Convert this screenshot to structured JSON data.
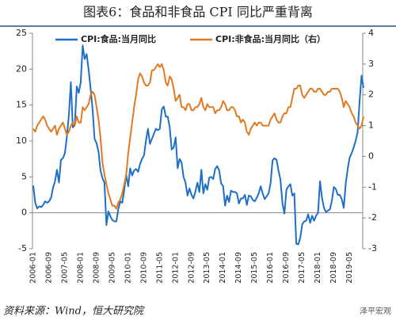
{
  "chart_data": {
    "type": "line",
    "title": "图表6：食品和非食品 CPI 同比严重背离",
    "source": "资料来源：Wind，恒大研究院",
    "watermark": "泽平宏观",
    "categories": [
      "2006-01",
      null,
      null,
      null,
      null,
      null,
      null,
      null,
      "2006-09",
      null,
      null,
      null,
      null,
      null,
      null,
      null,
      "2007-05",
      null,
      null,
      null,
      null,
      null,
      null,
      null,
      "2008-01",
      null,
      null,
      null,
      null,
      null,
      null,
      null,
      "2008-09",
      null,
      null,
      null,
      null,
      null,
      null,
      null,
      "2009-05",
      null,
      null,
      null,
      null,
      null,
      null,
      null,
      "2010-01",
      null,
      null,
      null,
      null,
      null,
      null,
      null,
      "2010-09",
      null,
      null,
      null,
      null,
      null,
      null,
      null,
      "2011-05",
      null,
      null,
      null,
      null,
      null,
      null,
      null,
      "2012-01",
      null,
      null,
      null,
      null,
      null,
      null,
      null,
      "2012-09",
      null,
      null,
      null,
      null,
      null,
      null,
      null,
      "2013-05",
      null,
      null,
      null,
      null,
      null,
      null,
      null,
      "2014-01",
      null,
      null,
      null,
      null,
      null,
      null,
      null,
      "2014-09",
      null,
      null,
      null,
      null,
      null,
      null,
      null,
      "2015-05",
      null,
      null,
      null,
      null,
      null,
      null,
      null,
      "2016-01",
      null,
      null,
      null,
      null,
      null,
      null,
      null,
      "2016-09",
      null,
      null,
      null,
      null,
      null,
      null,
      null,
      "2017-05",
      null,
      null,
      null,
      null,
      null,
      null,
      null,
      "2018-01",
      null,
      null,
      null,
      null,
      null,
      null,
      null,
      "2018-09",
      null,
      null,
      null,
      null,
      null,
      null,
      null,
      "2019-05",
      null,
      null,
      null,
      null,
      null,
      null,
      null
    ],
    "series": [
      {
        "name": "CPI:食品:当月同比",
        "color": "#1f6fc5",
        "values": [
          3.8,
          1.4,
          0.6,
          0.9,
          0.8,
          1.1,
          1.6,
          1.4,
          1.6,
          2.1,
          3.5,
          4.4,
          6.0,
          4.2,
          7.4,
          7.6,
          8.3,
          10.6,
          13.6,
          18.2,
          11.9,
          12.2,
          17.6,
          16.7,
          18.2,
          23.3,
          21.4,
          22.1,
          19.9,
          17.3,
          14.4,
          10.3,
          9.7,
          8.5,
          5.9,
          4.8,
          4.2,
          -1.7,
          0.2,
          -0.5,
          -1.0,
          -1.2,
          -1.2,
          0.5,
          1.6,
          1.4,
          3.2,
          5.3,
          3.7,
          6.2,
          5.2,
          5.9,
          6.1,
          5.7,
          6.8,
          7.5,
          8.0,
          10.1,
          11.7,
          9.6,
          10.3,
          11.0,
          11.7,
          11.5,
          11.7,
          14.4,
          14.8,
          13.4,
          13.4,
          11.9,
          8.8,
          9.1,
          10.5,
          6.2,
          7.5,
          7.0,
          5.0,
          4.2,
          2.4,
          3.4,
          2.5,
          2.0,
          3.0,
          4.2,
          2.9,
          6.0,
          2.7,
          4.0,
          3.2,
          4.9,
          5.0,
          4.7,
          6.1,
          6.5,
          5.9,
          4.1,
          3.7,
          1.0,
          2.4,
          1.5,
          3.1,
          2.9,
          2.9,
          2.7,
          1.3,
          2.0,
          2.0,
          2.5,
          1.1,
          2.4,
          2.3,
          1.8,
          1.6,
          2.1,
          2.7,
          3.7,
          2.7,
          1.9,
          2.3,
          2.7,
          4.1,
          7.3,
          7.6,
          7.4,
          5.9,
          4.6,
          1.3,
          -0.1,
          3.2,
          3.7,
          4.0,
          2.4,
          2.7,
          -4.3,
          -4.4,
          -3.5,
          -1.6,
          -1.2,
          -1.1,
          -0.2,
          -1.4,
          -0.4,
          -1.1,
          -0.4,
          0.0,
          4.4,
          2.1,
          0.7,
          0.1,
          0.3,
          0.5,
          1.7,
          3.6,
          3.3,
          2.5,
          2.5,
          1.9,
          0.7,
          4.1,
          6.1,
          7.7,
          8.3,
          9.1,
          10.0,
          11.2,
          15.5,
          19.1,
          17.4
        ]
      },
      {
        "name": "CPI:非食品:当月同比（右）",
        "color": "#e07b23",
        "axis": "y2",
        "values": [
          0.9,
          0.8,
          1.0,
          1.1,
          1.2,
          1.3,
          1.2,
          1.0,
          0.9,
          0.8,
          0.9,
          1.0,
          0.7,
          0.9,
          1.0,
          1.1,
          0.9,
          0.7,
          0.8,
          1.0,
          1.1,
          1.0,
          1.3,
          1.1,
          1.1,
          1.6,
          1.5,
          1.6,
          1.7,
          2.0,
          2.1,
          2.0,
          1.6,
          1.2,
          0.6,
          -0.2,
          -0.6,
          -0.9,
          -1.2,
          -1.4,
          -1.6,
          -1.6,
          -1.7,
          -1.5,
          -1.4,
          -1.2,
          -0.9,
          -0.6,
          0.1,
          0.6,
          1.1,
          1.6,
          2.0,
          2.5,
          2.7,
          2.6,
          2.4,
          2.3,
          2.3,
          2.4,
          2.8,
          2.8,
          2.9,
          3.0,
          2.9,
          3.0,
          2.8,
          2.4,
          2.3,
          2.6,
          2.5,
          2.2,
          1.8,
          1.9,
          2.0,
          1.6,
          1.6,
          1.5,
          1.7,
          1.7,
          1.5,
          1.5,
          1.6,
          1.6,
          1.7,
          1.9,
          1.6,
          1.5,
          1.7,
          1.6,
          1.6,
          1.6,
          1.4,
          1.5,
          1.5,
          1.6,
          1.8,
          1.7,
          1.5,
          1.5,
          1.6,
          1.6,
          1.5,
          1.3,
          1.3,
          1.1,
          1.2,
          1.1,
          0.8,
          0.7,
          0.9,
          1.0,
          1.1,
          1.0,
          1.1,
          1.1,
          1.0,
          1.0,
          1.0,
          1.0,
          1.2,
          1.3,
          1.4,
          1.2,
          1.1,
          1.1,
          1.3,
          1.4,
          1.4,
          1.6,
          1.6,
          1.9,
          2.2,
          2.2,
          2.3,
          2.3,
          2.0,
          1.9,
          2.0,
          2.1,
          2.2,
          2.2,
          2.1,
          2.1,
          2.2,
          2.2,
          2.1,
          2.0,
          2.0,
          2.1,
          2.1,
          2.2,
          2.2,
          2.2,
          2.2,
          2.1,
          1.9,
          1.6,
          1.8,
          1.7,
          1.6,
          1.4,
          1.3,
          1.1,
          1.0,
          0.9,
          1.0,
          1.3
        ]
      }
    ],
    "ylim": [
      -5,
      25
    ],
    "yticks": [
      -5,
      0,
      5,
      10,
      15,
      20,
      25
    ],
    "y2lim": [
      -3,
      4
    ],
    "y2ticks": [
      -3,
      -2,
      -1,
      0,
      1,
      2,
      3,
      4
    ],
    "grid": false,
    "legend": "top"
  }
}
